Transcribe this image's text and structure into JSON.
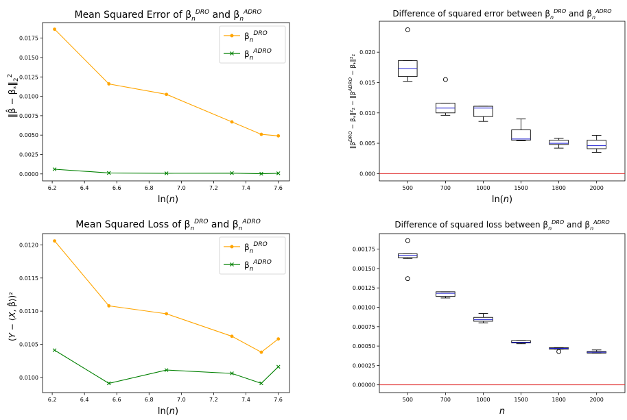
{
  "chart_data": [
    {
      "id": "mse",
      "type": "line",
      "title": "Mean Squared Error of β_n^{DRO} and β_n^{ADRO}",
      "xlabel": "ln(n)",
      "ylabel": "‖β̂ − β*‖₂²",
      "x": [
        6.2146,
        6.5511,
        6.9078,
        7.3132,
        7.4955,
        7.6009
      ],
      "xlim": [
        6.14,
        7.67
      ],
      "ylim": [
        -0.0009,
        0.0195
      ],
      "xticks": [
        6.2,
        6.4,
        6.6,
        6.8,
        7.0,
        7.2,
        7.4,
        7.6
      ],
      "xtick_labels": [
        "6.2",
        "6.4",
        "6.6",
        "6.8",
        "7.0",
        "7.2",
        "7.4",
        "7.6"
      ],
      "yticks": [
        0,
        0.0025,
        0.005,
        0.0075,
        0.01,
        0.0125,
        0.015,
        0.0175
      ],
      "ytick_labels": [
        "0.0000",
        "0.0025",
        "0.0050",
        "0.0075",
        "0.0100",
        "0.0125",
        "0.0150",
        "0.0175"
      ],
      "legend_position": "top-right",
      "series": [
        {
          "name": "β_n^{DRO}",
          "color": "#ffa500",
          "marker": "dot",
          "values": [
            0.01865,
            0.0116,
            0.01025,
            0.0067,
            0.0051,
            0.0049
          ]
        },
        {
          "name": "β_n^{ADRO}",
          "color": "#008000",
          "marker": "x",
          "values": [
            0.0006,
            0.00012,
            8e-05,
            0.0001,
            2e-05,
            8e-05
          ]
        }
      ]
    },
    {
      "id": "diff-error",
      "type": "box",
      "title": "Difference of squared error between β_n^{DRO} and β_n^{ADRO}",
      "xlabel": "ln(n)",
      "ylabel": "‖β_n^{DRO} − β*‖₂² − ‖β_n^{ADRO} − β*‖₂²",
      "categories": [
        "500",
        "700",
        "1000",
        "1500",
        "1800",
        "2000"
      ],
      "ylim": [
        -0.0012,
        0.0251
      ],
      "yticks": [
        0,
        0.005,
        0.01,
        0.015,
        0.02
      ],
      "ytick_labels": [
        "0.000",
        "0.005",
        "0.010",
        "0.015",
        "0.020"
      ],
      "reference_line": {
        "value": 0,
        "color": "#e03030"
      },
      "boxes": [
        {
          "whisker_low": 0.0152,
          "q1": 0.016,
          "median": 0.0173,
          "q3": 0.0186,
          "whisker_high": 0.0186,
          "outliers": [
            0.0237
          ]
        },
        {
          "whisker_low": 0.0096,
          "q1": 0.01,
          "median": 0.0108,
          "q3": 0.0116,
          "whisker_high": 0.0116,
          "outliers": [
            0.0155
          ]
        },
        {
          "whisker_low": 0.0086,
          "q1": 0.0094,
          "median": 0.0108,
          "q3": 0.0111,
          "whisker_high": 0.0111,
          "outliers": []
        },
        {
          "whisker_low": 0.0054,
          "q1": 0.0055,
          "median": 0.0057,
          "q3": 0.0072,
          "whisker_high": 0.009,
          "outliers": []
        },
        {
          "whisker_low": 0.0042,
          "q1": 0.0048,
          "median": 0.005,
          "q3": 0.0055,
          "whisker_high": 0.0058,
          "outliers": []
        },
        {
          "whisker_low": 0.0035,
          "q1": 0.0041,
          "median": 0.0046,
          "q3": 0.0055,
          "whisker_high": 0.0063,
          "outliers": []
        }
      ]
    },
    {
      "id": "msl",
      "type": "line",
      "title": "Mean Squared Loss of β_n^{DRO} and β_n^{ADRO}",
      "xlabel": "ln(n)",
      "ylabel": "(Y − ⟨X, β̂⟩)²",
      "x": [
        6.2146,
        6.5511,
        6.9078,
        7.3132,
        7.4955,
        7.6009
      ],
      "xlim": [
        6.14,
        7.67
      ],
      "ylim": [
        0.00977,
        0.01217
      ],
      "xticks": [
        6.2,
        6.4,
        6.6,
        6.8,
        7.0,
        7.2,
        7.4,
        7.6
      ],
      "xtick_labels": [
        "6.2",
        "6.4",
        "6.6",
        "6.8",
        "7.0",
        "7.2",
        "7.4",
        "7.6"
      ],
      "yticks": [
        0.01,
        0.0105,
        0.011,
        0.0115,
        0.012
      ],
      "ytick_labels": [
        "0.0100",
        "0.0105",
        "0.0110",
        "0.0115",
        "0.0120"
      ],
      "legend_position": "top-right",
      "series": [
        {
          "name": "β_n^{DRO}",
          "color": "#ffa500",
          "marker": "dot",
          "values": [
            0.01206,
            0.01108,
            0.01096,
            0.01062,
            0.01038,
            0.01058
          ]
        },
        {
          "name": "β_n^{ADRO}",
          "color": "#008000",
          "marker": "x",
          "values": [
            0.01041,
            0.00991,
            0.01011,
            0.01006,
            0.00991,
            0.01016
          ]
        }
      ]
    },
    {
      "id": "diff-loss",
      "type": "box",
      "title": "Difference of squared loss between β_n^{DRO} and β_n^{ADRO}",
      "xlabel": "n",
      "ylabel": "",
      "categories": [
        "500",
        "700",
        "1000",
        "1500",
        "1800",
        "2000"
      ],
      "ylim": [
        -0.0001,
        0.00195
      ],
      "yticks": [
        0,
        0.00025,
        0.0005,
        0.00075,
        0.001,
        0.00125,
        0.0015,
        0.00175
      ],
      "ytick_labels": [
        "0.00000",
        "0.00025",
        "0.00050",
        "0.00075",
        "0.00100",
        "0.00125",
        "0.00150",
        "0.00175"
      ],
      "reference_line": {
        "value": 0,
        "color": "#e03030"
      },
      "boxes": [
        {
          "whisker_low": 0.00163,
          "q1": 0.00164,
          "median": 0.00167,
          "q3": 0.00169,
          "whisker_high": 0.00169,
          "outliers": [
            0.00186,
            0.00137
          ]
        },
        {
          "whisker_low": 0.00112,
          "q1": 0.00114,
          "median": 0.00118,
          "q3": 0.0012,
          "whisker_high": 0.0012,
          "outliers": []
        },
        {
          "whisker_low": 0.0008,
          "q1": 0.00082,
          "median": 0.00084,
          "q3": 0.00087,
          "whisker_high": 0.00092,
          "outliers": []
        },
        {
          "whisker_low": 0.00053,
          "q1": 0.00054,
          "median": 0.00055,
          "q3": 0.00057,
          "whisker_high": 0.00057,
          "outliers": []
        },
        {
          "whisker_low": 0.00046,
          "q1": 0.00046,
          "median": 0.00047,
          "q3": 0.00048,
          "whisker_high": 0.00048,
          "outliers": [
            0.00043
          ]
        },
        {
          "whisker_low": 0.00041,
          "q1": 0.00041,
          "median": 0.00042,
          "q3": 0.00043,
          "whisker_high": 0.00045,
          "outliers": []
        }
      ]
    }
  ]
}
